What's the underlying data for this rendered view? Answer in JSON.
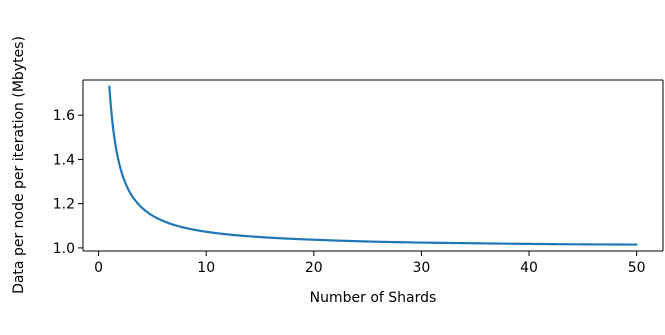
{
  "chart_data": {
    "type": "line",
    "title": "",
    "xlabel": "Number of Shards",
    "ylabel": "Data per node per iteration (Mbytes)",
    "xlim": [
      -1.45,
      52.45
    ],
    "ylim": [
      0.986,
      1.759
    ],
    "x_ticks": [
      0,
      10,
      20,
      30,
      40,
      50
    ],
    "x_tick_labels": [
      "0",
      "10",
      "20",
      "30",
      "40",
      "50"
    ],
    "y_ticks": [
      1.0,
      1.2,
      1.4,
      1.6
    ],
    "y_tick_labels": [
      "1.0",
      "1.2",
      "1.4",
      "1.6"
    ],
    "grid": false,
    "legend": false,
    "series": [
      {
        "color": "#1f77b4",
        "x": [
          1,
          1.5,
          2,
          2.5,
          3,
          3.5,
          4,
          5,
          6,
          7,
          8,
          10,
          12,
          15,
          20,
          25,
          30,
          35,
          40,
          45,
          50
        ],
        "y": [
          1.73,
          1.487,
          1.365,
          1.292,
          1.243,
          1.209,
          1.183,
          1.146,
          1.122,
          1.104,
          1.091,
          1.073,
          1.061,
          1.049,
          1.037,
          1.029,
          1.024,
          1.021,
          1.018,
          1.016,
          1.015
        ]
      }
    ]
  }
}
